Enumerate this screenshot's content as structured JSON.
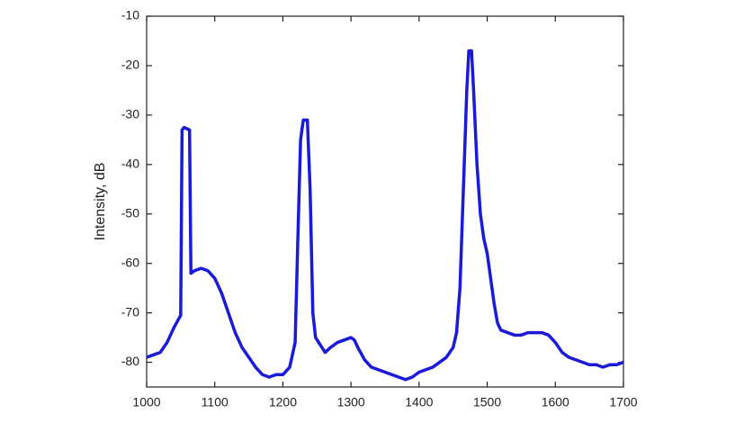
{
  "chart_data": {
    "type": "line",
    "y_label": "Intensity, dB",
    "x": [
      1000,
      1010,
      1020,
      1030,
      1040,
      1050,
      1052,
      1055,
      1063,
      1065,
      1070,
      1080,
      1090,
      1100,
      1110,
      1120,
      1130,
      1140,
      1150,
      1160,
      1170,
      1180,
      1190,
      1200,
      1210,
      1218,
      1222,
      1226,
      1230,
      1236,
      1240,
      1244,
      1248,
      1255,
      1262,
      1270,
      1280,
      1290,
      1300,
      1305,
      1310,
      1320,
      1330,
      1340,
      1350,
      1360,
      1370,
      1380,
      1390,
      1400,
      1410,
      1420,
      1430,
      1440,
      1450,
      1455,
      1460,
      1465,
      1470,
      1473,
      1477,
      1480,
      1485,
      1490,
      1495,
      1500,
      1505,
      1510,
      1515,
      1520,
      1530,
      1540,
      1550,
      1560,
      1570,
      1580,
      1590,
      1600,
      1610,
      1620,
      1630,
      1640,
      1650,
      1660,
      1670,
      1680,
      1690,
      1700
    ],
    "series": [
      {
        "color": "#1a1ad8",
        "values": [
          -79,
          -78.5,
          -78,
          -76,
          -73,
          -70.5,
          -33,
          -32.5,
          -33,
          -62,
          -61.5,
          -61,
          -61.5,
          -63,
          -66,
          -70,
          -74,
          -77,
          -79,
          -81,
          -82.5,
          -83,
          -82.5,
          -82.5,
          -81,
          -76,
          -55,
          -35,
          -31,
          -31,
          -45,
          -70,
          -75,
          -76.5,
          -78,
          -77,
          -76,
          -75.5,
          -75,
          -75.5,
          -77,
          -79.5,
          -81,
          -81.5,
          -82,
          -82.5,
          -83,
          -83.5,
          -83,
          -82,
          -81.5,
          -81,
          -80,
          -79,
          -77,
          -74,
          -65,
          -45,
          -25,
          -17,
          -17,
          -25,
          -40,
          -50,
          -55,
          -58,
          -63,
          -68,
          -72,
          -73.5,
          -74,
          -74.5,
          -74.5,
          -74,
          -74,
          -74,
          -74.5,
          -76,
          -78,
          -79,
          -79.5,
          -80,
          -80.5,
          -80.5,
          -81,
          -80.5,
          -80.5,
          -80
        ]
      }
    ],
    "xlim": [
      1000,
      1700
    ],
    "xticks": [
      1000,
      1100,
      1200,
      1300,
      1400,
      1500,
      1600,
      1700
    ],
    "ylim": [
      -85,
      -10
    ],
    "yticks": [
      -80,
      -70,
      -60,
      -50,
      -40,
      -30,
      -20,
      -10
    ]
  }
}
